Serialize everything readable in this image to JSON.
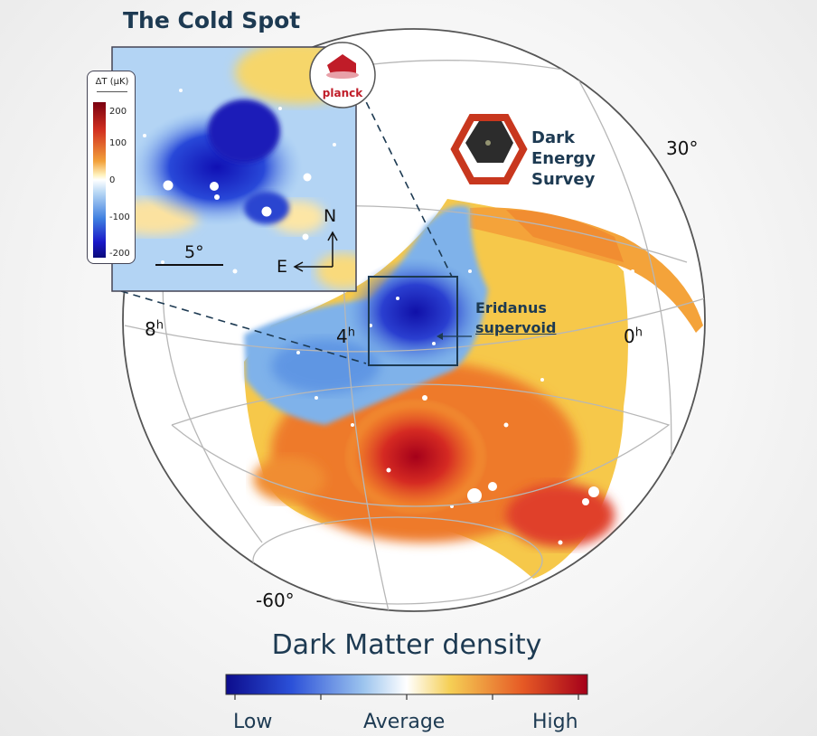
{
  "title": "The Cold Spot",
  "des_logo": {
    "lines": [
      "Dark",
      "Energy",
      "Survey"
    ],
    "colors": {
      "hex_outer": "#c8371e",
      "hex_inner": "#333333",
      "text": "#1d3a52"
    }
  },
  "planck_logo": {
    "text": "planck",
    "color": "#c01c28"
  },
  "coords": {
    "dec_30": "30°",
    "dec_minus60": "-60°",
    "ra_8": "8",
    "ra_4": "4",
    "ra_0": "0",
    "hour_sup": "h"
  },
  "void_label": {
    "line1": "Eridanus",
    "line2": "supervoid"
  },
  "inset": {
    "legend_title": "ΔT (μK)",
    "ticks": [
      "200",
      "100",
      "0",
      "-100",
      "-200"
    ],
    "scale_label": "5°",
    "north": "N",
    "east": "E"
  },
  "colorbar": {
    "title": "Dark Matter density",
    "low": "Low",
    "average": "Average",
    "high": "High",
    "colors": [
      "#0c0c8c",
      "#2b50d8",
      "#9cc4ee",
      "#ffffff",
      "#f5cf55",
      "#e65a25",
      "#a5001a"
    ]
  }
}
